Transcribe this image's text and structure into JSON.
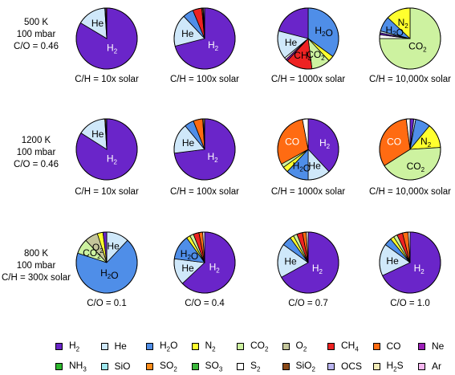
{
  "chart_data": {
    "type": "pie",
    "species": [
      {
        "key": "H2",
        "label": "H2",
        "color": "#6a25c9"
      },
      {
        "key": "He",
        "label": "He",
        "color": "#cfe8fa"
      },
      {
        "key": "H2O",
        "label": "H2O",
        "color": "#4f8ee8"
      },
      {
        "key": "N2",
        "label": "N2",
        "color": "#ffff2e"
      },
      {
        "key": "CO2",
        "label": "CO2",
        "color": "#cdf2a0"
      },
      {
        "key": "O2",
        "label": "O2",
        "color": "#c4c69b"
      },
      {
        "key": "CH4",
        "label": "CH4",
        "color": "#ee2222"
      },
      {
        "key": "CO",
        "label": "CO",
        "color": "#ff6b12"
      },
      {
        "key": "Ne",
        "label": "Ne",
        "color": "#9b1fb8"
      },
      {
        "key": "NH3",
        "label": "NH3",
        "color": "#2db82d"
      },
      {
        "key": "SiO",
        "label": "SiO",
        "color": "#9ee8ef"
      },
      {
        "key": "SO2",
        "label": "SO2",
        "color": "#ff8c1a"
      },
      {
        "key": "SO3",
        "label": "SO3",
        "color": "#3cb83c"
      },
      {
        "key": "S2",
        "label": "S2",
        "color": "#ffffff"
      },
      {
        "key": "SiO2",
        "label": "SiO2",
        "color": "#8b4a1a"
      },
      {
        "key": "OCS",
        "label": "OCS",
        "color": "#b9b4ee"
      },
      {
        "key": "H2S",
        "label": "H2S",
        "color": "#f2ecb8"
      },
      {
        "key": "Ar",
        "label": "Ar",
        "color": "#f6b6f0"
      }
    ],
    "rows": [
      {
        "label_lines": [
          "500 K",
          "100 mbar",
          "C/O = 0.46"
        ],
        "charts": [
          {
            "caption": "C/H = 10x solar",
            "slices": [
              {
                "key": "H2",
                "value": 83.6
              },
              {
                "key": "He",
                "value": 15.4
              },
              {
                "key": "H2O",
                "value": 0.5
              },
              {
                "key": "CH4",
                "value": 0.5
              }
            ],
            "labels": [
              "H2",
              "He"
            ]
          },
          {
            "caption": "C/H = 100x solar",
            "slices": [
              {
                "key": "H2",
                "value": 71
              },
              {
                "key": "He",
                "value": 17
              },
              {
                "key": "H2O",
                "value": 5.7
              },
              {
                "key": "CH4",
                "value": 4.8
              },
              {
                "key": "N2",
                "value": 0.5
              },
              {
                "key": "Ne",
                "value": 0.5
              },
              {
                "key": "S2",
                "value": 0.5
              }
            ],
            "labels": [
              "H2",
              "He"
            ]
          },
          {
            "caption": "C/H = 1000x solar",
            "slices": [
              {
                "key": "H2O",
                "value": 35
              },
              {
                "key": "N2",
                "value": 3
              },
              {
                "key": "CO2",
                "value": 10
              },
              {
                "key": "CH4",
                "value": 14
              },
              {
                "key": "Ne",
                "value": 1
              },
              {
                "key": "S2",
                "value": 1
              },
              {
                "key": "He",
                "value": 15
              },
              {
                "key": "H2",
                "value": 21
              }
            ],
            "labels": [
              "H2O",
              "CO2",
              "CH4",
              "He"
            ]
          },
          {
            "caption": "C/H = 10,000x solar",
            "slices": [
              {
                "key": "CO2",
                "value": 75
              },
              {
                "key": "S2",
                "value": 2
              },
              {
                "key": "H2",
                "value": 1
              },
              {
                "key": "He",
                "value": 1
              },
              {
                "key": "H2O",
                "value": 8
              },
              {
                "key": "N2",
                "value": 13
              }
            ],
            "labels": [
              "CO2",
              "N2",
              "H2O"
            ]
          }
        ]
      },
      {
        "label_lines": [
          "1200 K",
          "100 mbar",
          "C/O = 0.46"
        ],
        "charts": [
          {
            "caption": "C/H = 10x solar",
            "slices": [
              {
                "key": "H2",
                "value": 84
              },
              {
                "key": "He",
                "value": 15
              },
              {
                "key": "CO",
                "value": 0.5
              },
              {
                "key": "H2O",
                "value": 0.5
              }
            ],
            "labels": [
              "H2",
              "He"
            ]
          },
          {
            "caption": "C/H = 100x solar",
            "slices": [
              {
                "key": "H2",
                "value": 73
              },
              {
                "key": "He",
                "value": 16
              },
              {
                "key": "H2O",
                "value": 5
              },
              {
                "key": "CO",
                "value": 5
              },
              {
                "key": "S2",
                "value": 0.5
              },
              {
                "key": "N2",
                "value": 0.5
              }
            ],
            "labels": [
              "H2",
              "He"
            ]
          },
          {
            "caption": "C/H = 1000x solar",
            "slices": [
              {
                "key": "H2",
                "value": 38
              },
              {
                "key": "He",
                "value": 12
              },
              {
                "key": "H2O",
                "value": 12
              },
              {
                "key": "N2",
                "value": 3
              },
              {
                "key": "CO2",
                "value": 2
              },
              {
                "key": "CO",
                "value": 30
              },
              {
                "key": "S2",
                "value": 3
              }
            ],
            "labels": [
              "H2",
              "He",
              "H2O",
              "CO"
            ]
          },
          {
            "caption": "C/H = 10,000x solar",
            "slices": [
              {
                "key": "H2",
                "value": 2
              },
              {
                "key": "He",
                "value": 1
              },
              {
                "key": "H2O",
                "value": 8
              },
              {
                "key": "N2",
                "value": 13
              },
              {
                "key": "CO2",
                "value": 42
              },
              {
                "key": "CO",
                "value": 32
              },
              {
                "key": "S2",
                "value": 2
              }
            ],
            "labels": [
              "N2",
              "CO2",
              "CO"
            ]
          }
        ]
      },
      {
        "label_lines": [
          "800 K",
          "100 mbar",
          "C/H = 300x solar"
        ],
        "charts": [
          {
            "caption": "C/O = 0.1",
            "slices": [
              {
                "key": "He",
                "value": 12
              },
              {
                "key": "H2O",
                "value": 68
              },
              {
                "key": "CO2",
                "value": 8
              },
              {
                "key": "O2",
                "value": 7
              },
              {
                "key": "N2",
                "value": 3
              },
              {
                "key": "H2",
                "value": 2
              }
            ],
            "labels": [
              "He",
              "H2O",
              "CO2",
              "O2"
            ]
          },
          {
            "caption": "C/O = 0.4",
            "slices": [
              {
                "key": "H2",
                "value": 63
              },
              {
                "key": "He",
                "value": 14
              },
              {
                "key": "H2O",
                "value": 13
              },
              {
                "key": "N2",
                "value": 2
              },
              {
                "key": "CO2",
                "value": 2
              },
              {
                "key": "CH4",
                "value": 3
              },
              {
                "key": "CO",
                "value": 2
              },
              {
                "key": "S2",
                "value": 1
              }
            ],
            "labels": [
              "H2",
              "He",
              "H2O"
            ]
          },
          {
            "caption": "C/O = 0.7",
            "slices": [
              {
                "key": "H2",
                "value": 67
              },
              {
                "key": "He",
                "value": 18
              },
              {
                "key": "H2O",
                "value": 5
              },
              {
                "key": "N2",
                "value": 2
              },
              {
                "key": "CO2",
                "value": 2
              },
              {
                "key": "CH4",
                "value": 3
              },
              {
                "key": "CO",
                "value": 2
              },
              {
                "key": "S2",
                "value": 1
              }
            ],
            "labels": [
              "H2",
              "He"
            ]
          },
          {
            "caption": "C/O = 1.0",
            "slices": [
              {
                "key": "H2",
                "value": 68
              },
              {
                "key": "He",
                "value": 17
              },
              {
                "key": "H2O",
                "value": 4
              },
              {
                "key": "N2",
                "value": 2
              },
              {
                "key": "CO2",
                "value": 2
              },
              {
                "key": "CH4",
                "value": 3
              },
              {
                "key": "CO",
                "value": 3
              },
              {
                "key": "S2",
                "value": 1
              }
            ],
            "labels": [
              "H2",
              "He"
            ]
          }
        ]
      }
    ]
  }
}
